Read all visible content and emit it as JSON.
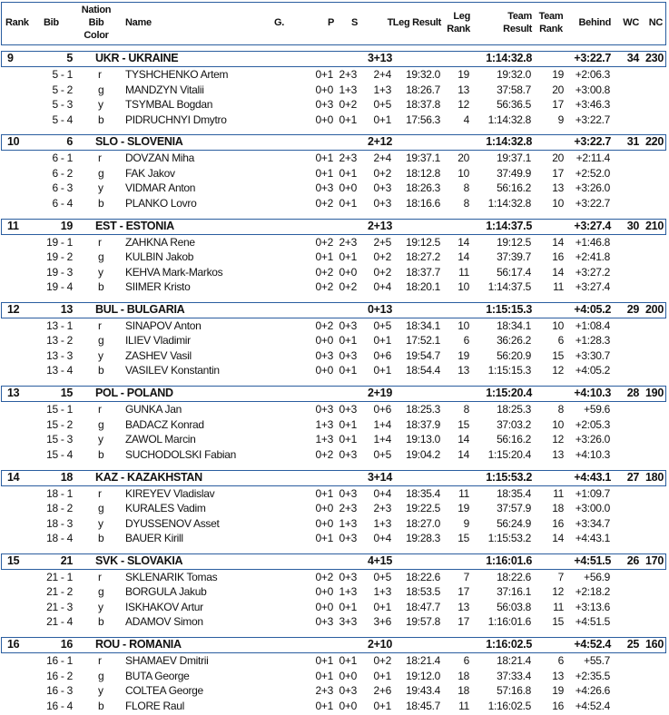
{
  "header": {
    "rank": "Rank",
    "bib": "Bib",
    "nation_bib_color": [
      "Nation",
      "Bib",
      "Color"
    ],
    "name": "Name",
    "g": "G.",
    "p": "P",
    "s": "S",
    "t": "T",
    "leg_result": "Leg Result",
    "leg_rank": [
      "Leg",
      "Rank"
    ],
    "team_result": [
      "Team",
      "Result"
    ],
    "team_rank": [
      "Team",
      "Rank"
    ],
    "behind": "Behind",
    "wc": "WC",
    "nc": "NC"
  },
  "teams": [
    {
      "rank": "9",
      "bib": "5",
      "nation": "UKR - UKRAINE",
      "t": "3+13",
      "team_result": "1:14:32.8",
      "behind": "+3:22.7",
      "wc": "34",
      "nc": "230",
      "members": [
        {
          "bib": "5 - 1",
          "color": "r",
          "name": "TYSHCHENKO Artem",
          "p": "0+1",
          "s": "2+3",
          "t": "2+4",
          "leg_result": "19:32.0",
          "leg_rank": "19",
          "team_result": "19:32.0",
          "team_rank": "19",
          "behind": "+2:06.3"
        },
        {
          "bib": "5 - 2",
          "color": "g",
          "name": "MANDZYN Vitalii",
          "p": "0+0",
          "s": "1+3",
          "t": "1+3",
          "leg_result": "18:26.7",
          "leg_rank": "13",
          "team_result": "37:58.7",
          "team_rank": "20",
          "behind": "+3:00.8"
        },
        {
          "bib": "5 - 3",
          "color": "y",
          "name": "TSYMBAL Bogdan",
          "p": "0+3",
          "s": "0+2",
          "t": "0+5",
          "leg_result": "18:37.8",
          "leg_rank": "12",
          "team_result": "56:36.5",
          "team_rank": "17",
          "behind": "+3:46.3"
        },
        {
          "bib": "5 - 4",
          "color": "b",
          "name": "PIDRUCHNYI Dmytro",
          "p": "0+0",
          "s": "0+1",
          "t": "0+1",
          "leg_result": "17:56.3",
          "leg_rank": "4",
          "team_result": "1:14:32.8",
          "team_rank": "9",
          "behind": "+3:22.7"
        }
      ]
    },
    {
      "rank": "10",
      "bib": "6",
      "nation": "SLO - SLOVENIA",
      "t": "2+12",
      "team_result": "1:14:32.8",
      "behind": "+3:22.7",
      "wc": "31",
      "nc": "220",
      "members": [
        {
          "bib": "6 - 1",
          "color": "r",
          "name": "DOVZAN Miha",
          "p": "0+1",
          "s": "2+3",
          "t": "2+4",
          "leg_result": "19:37.1",
          "leg_rank": "20",
          "team_result": "19:37.1",
          "team_rank": "20",
          "behind": "+2:11.4"
        },
        {
          "bib": "6 - 2",
          "color": "g",
          "name": "FAK Jakov",
          "p": "0+1",
          "s": "0+1",
          "t": "0+2",
          "leg_result": "18:12.8",
          "leg_rank": "10",
          "team_result": "37:49.9",
          "team_rank": "17",
          "behind": "+2:52.0"
        },
        {
          "bib": "6 - 3",
          "color": "y",
          "name": "VIDMAR Anton",
          "p": "0+3",
          "s": "0+0",
          "t": "0+3",
          "leg_result": "18:26.3",
          "leg_rank": "8",
          "team_result": "56:16.2",
          "team_rank": "13",
          "behind": "+3:26.0"
        },
        {
          "bib": "6 - 4",
          "color": "b",
          "name": "PLANKO Lovro",
          "p": "0+2",
          "s": "0+1",
          "t": "0+3",
          "leg_result": "18:16.6",
          "leg_rank": "8",
          "team_result": "1:14:32.8",
          "team_rank": "10",
          "behind": "+3:22.7"
        }
      ]
    },
    {
      "rank": "11",
      "bib": "19",
      "nation": "EST - ESTONIA",
      "t": "2+13",
      "team_result": "1:14:37.5",
      "behind": "+3:27.4",
      "wc": "30",
      "nc": "210",
      "members": [
        {
          "bib": "19 - 1",
          "color": "r",
          "name": "ZAHKNA Rene",
          "p": "0+2",
          "s": "2+3",
          "t": "2+5",
          "leg_result": "19:12.5",
          "leg_rank": "14",
          "team_result": "19:12.5",
          "team_rank": "14",
          "behind": "+1:46.8"
        },
        {
          "bib": "19 - 2",
          "color": "g",
          "name": "KULBIN Jakob",
          "p": "0+1",
          "s": "0+1",
          "t": "0+2",
          "leg_result": "18:27.2",
          "leg_rank": "14",
          "team_result": "37:39.7",
          "team_rank": "16",
          "behind": "+2:41.8"
        },
        {
          "bib": "19 - 3",
          "color": "y",
          "name": "KEHVA Mark-Markos",
          "p": "0+2",
          "s": "0+0",
          "t": "0+2",
          "leg_result": "18:37.7",
          "leg_rank": "11",
          "team_result": "56:17.4",
          "team_rank": "14",
          "behind": "+3:27.2"
        },
        {
          "bib": "19 - 4",
          "color": "b",
          "name": "SIIMER Kristo",
          "p": "0+2",
          "s": "0+2",
          "t": "0+4",
          "leg_result": "18:20.1",
          "leg_rank": "10",
          "team_result": "1:14:37.5",
          "team_rank": "11",
          "behind": "+3:27.4"
        }
      ]
    },
    {
      "rank": "12",
      "bib": "13",
      "nation": "BUL - BULGARIA",
      "t": "0+13",
      "team_result": "1:15:15.3",
      "behind": "+4:05.2",
      "wc": "29",
      "nc": "200",
      "members": [
        {
          "bib": "13 - 1",
          "color": "r",
          "name": "SINAPOV Anton",
          "p": "0+2",
          "s": "0+3",
          "t": "0+5",
          "leg_result": "18:34.1",
          "leg_rank": "10",
          "team_result": "18:34.1",
          "team_rank": "10",
          "behind": "+1:08.4"
        },
        {
          "bib": "13 - 2",
          "color": "g",
          "name": "ILIEV Vladimir",
          "p": "0+0",
          "s": "0+1",
          "t": "0+1",
          "leg_result": "17:52.1",
          "leg_rank": "6",
          "team_result": "36:26.2",
          "team_rank": "6",
          "behind": "+1:28.3"
        },
        {
          "bib": "13 - 3",
          "color": "y",
          "name": "ZASHEV Vasil",
          "p": "0+3",
          "s": "0+3",
          "t": "0+6",
          "leg_result": "19:54.7",
          "leg_rank": "19",
          "team_result": "56:20.9",
          "team_rank": "15",
          "behind": "+3:30.7"
        },
        {
          "bib": "13 - 4",
          "color": "b",
          "name": "VASILEV Konstantin",
          "p": "0+0",
          "s": "0+1",
          "t": "0+1",
          "leg_result": "18:54.4",
          "leg_rank": "13",
          "team_result": "1:15:15.3",
          "team_rank": "12",
          "behind": "+4:05.2"
        }
      ]
    },
    {
      "rank": "13",
      "bib": "15",
      "nation": "POL - POLAND",
      "t": "2+19",
      "team_result": "1:15:20.4",
      "behind": "+4:10.3",
      "wc": "28",
      "nc": "190",
      "members": [
        {
          "bib": "15 - 1",
          "color": "r",
          "name": "GUNKA Jan",
          "p": "0+3",
          "s": "0+3",
          "t": "0+6",
          "leg_result": "18:25.3",
          "leg_rank": "8",
          "team_result": "18:25.3",
          "team_rank": "8",
          "behind": "+59.6"
        },
        {
          "bib": "15 - 2",
          "color": "g",
          "name": "BADACZ Konrad",
          "p": "1+3",
          "s": "0+1",
          "t": "1+4",
          "leg_result": "18:37.9",
          "leg_rank": "15",
          "team_result": "37:03.2",
          "team_rank": "10",
          "behind": "+2:05.3"
        },
        {
          "bib": "15 - 3",
          "color": "y",
          "name": "ZAWOL Marcin",
          "p": "1+3",
          "s": "0+1",
          "t": "1+4",
          "leg_result": "19:13.0",
          "leg_rank": "14",
          "team_result": "56:16.2",
          "team_rank": "12",
          "behind": "+3:26.0"
        },
        {
          "bib": "15 - 4",
          "color": "b",
          "name": "SUCHODOLSKI Fabian",
          "p": "0+2",
          "s": "0+3",
          "t": "0+5",
          "leg_result": "19:04.2",
          "leg_rank": "14",
          "team_result": "1:15:20.4",
          "team_rank": "13",
          "behind": "+4:10.3"
        }
      ]
    },
    {
      "rank": "14",
      "bib": "18",
      "nation": "KAZ - KAZAKHSTAN",
      "t": "3+14",
      "team_result": "1:15:53.2",
      "behind": "+4:43.1",
      "wc": "27",
      "nc": "180",
      "members": [
        {
          "bib": "18 - 1",
          "color": "r",
          "name": "KIREYEV Vladislav",
          "p": "0+1",
          "s": "0+3",
          "t": "0+4",
          "leg_result": "18:35.4",
          "leg_rank": "11",
          "team_result": "18:35.4",
          "team_rank": "11",
          "behind": "+1:09.7"
        },
        {
          "bib": "18 - 2",
          "color": "g",
          "name": "KURALES Vadim",
          "p": "0+0",
          "s": "2+3",
          "t": "2+3",
          "leg_result": "19:22.5",
          "leg_rank": "19",
          "team_result": "37:57.9",
          "team_rank": "18",
          "behind": "+3:00.0"
        },
        {
          "bib": "18 - 3",
          "color": "y",
          "name": "DYUSSENOV Asset",
          "p": "0+0",
          "s": "1+3",
          "t": "1+3",
          "leg_result": "18:27.0",
          "leg_rank": "9",
          "team_result": "56:24.9",
          "team_rank": "16",
          "behind": "+3:34.7"
        },
        {
          "bib": "18 - 4",
          "color": "b",
          "name": "BAUER Kirill",
          "p": "0+1",
          "s": "0+3",
          "t": "0+4",
          "leg_result": "19:28.3",
          "leg_rank": "15",
          "team_result": "1:15:53.2",
          "team_rank": "14",
          "behind": "+4:43.1"
        }
      ]
    },
    {
      "rank": "15",
      "bib": "21",
      "nation": "SVK - SLOVAKIA",
      "t": "4+15",
      "team_result": "1:16:01.6",
      "behind": "+4:51.5",
      "wc": "26",
      "nc": "170",
      "members": [
        {
          "bib": "21 - 1",
          "color": "r",
          "name": "SKLENARIK Tomas",
          "p": "0+2",
          "s": "0+3",
          "t": "0+5",
          "leg_result": "18:22.6",
          "leg_rank": "7",
          "team_result": "18:22.6",
          "team_rank": "7",
          "behind": "+56.9"
        },
        {
          "bib": "21 - 2",
          "color": "g",
          "name": "BORGULA Jakub",
          "p": "0+0",
          "s": "1+3",
          "t": "1+3",
          "leg_result": "18:53.5",
          "leg_rank": "17",
          "team_result": "37:16.1",
          "team_rank": "12",
          "behind": "+2:18.2"
        },
        {
          "bib": "21 - 3",
          "color": "y",
          "name": "ISKHAKOV Artur",
          "p": "0+0",
          "s": "0+1",
          "t": "0+1",
          "leg_result": "18:47.7",
          "leg_rank": "13",
          "team_result": "56:03.8",
          "team_rank": "11",
          "behind": "+3:13.6"
        },
        {
          "bib": "21 - 4",
          "color": "b",
          "name": "ADAMOV Simon",
          "p": "0+3",
          "s": "3+3",
          "t": "3+6",
          "leg_result": "19:57.8",
          "leg_rank": "17",
          "team_result": "1:16:01.6",
          "team_rank": "15",
          "behind": "+4:51.5"
        }
      ]
    },
    {
      "rank": "16",
      "bib": "16",
      "nation": "ROU - ROMANIA",
      "t": "2+10",
      "team_result": "1:16:02.5",
      "behind": "+4:52.4",
      "wc": "25",
      "nc": "160",
      "members": [
        {
          "bib": "16 - 1",
          "color": "r",
          "name": "SHAMAEV Dmitrii",
          "p": "0+1",
          "s": "0+1",
          "t": "0+2",
          "leg_result": "18:21.4",
          "leg_rank": "6",
          "team_result": "18:21.4",
          "team_rank": "6",
          "behind": "+55.7"
        },
        {
          "bib": "16 - 2",
          "color": "g",
          "name": "BUTA George",
          "p": "0+1",
          "s": "0+0",
          "t": "0+1",
          "leg_result": "19:12.0",
          "leg_rank": "18",
          "team_result": "37:33.4",
          "team_rank": "13",
          "behind": "+2:35.5"
        },
        {
          "bib": "16 - 3",
          "color": "y",
          "name": "COLTEA George",
          "p": "2+3",
          "s": "0+3",
          "t": "2+6",
          "leg_result": "19:43.4",
          "leg_rank": "18",
          "team_result": "57:16.8",
          "team_rank": "19",
          "behind": "+4:26.6"
        },
        {
          "bib": "16 - 4",
          "color": "b",
          "name": "FLORE Raul",
          "p": "0+1",
          "s": "0+0",
          "t": "0+1",
          "leg_result": "18:45.7",
          "leg_rank": "11",
          "team_result": "1:16:02.5",
          "team_rank": "16",
          "behind": "+4:52.4"
        }
      ]
    }
  ],
  "colors": {
    "border": "#2a5d9f"
  }
}
